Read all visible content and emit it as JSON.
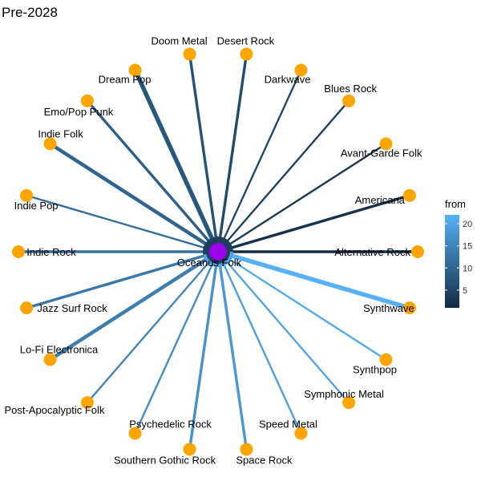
{
  "title": "Pre-2028",
  "center": {
    "label": "Oceanus Folk",
    "color": "#9b00e8"
  },
  "node_color": "#ffa500",
  "legend": {
    "title": "from",
    "ticks": [
      5,
      10,
      15,
      20
    ],
    "min": 1,
    "max": 22,
    "color_low": "#132b43",
    "color_high": "#56b1f7"
  },
  "chart_data": {
    "type": "network",
    "center": "Oceanus Folk",
    "edges": [
      {
        "to": "Alternative Rock",
        "from": 1,
        "weight": 2
      },
      {
        "to": "Americana",
        "from": 2,
        "weight": 2
      },
      {
        "to": "Avant-Garde Folk",
        "from": 3,
        "weight": 1
      },
      {
        "to": "Blues Rock",
        "from": 4,
        "weight": 1
      },
      {
        "to": "Darkwave",
        "from": 5,
        "weight": 1
      },
      {
        "to": "Desert Rock",
        "from": 6,
        "weight": 2
      },
      {
        "to": "Doom Metal",
        "from": 7,
        "weight": 2
      },
      {
        "to": "Dream Pop",
        "from": 8,
        "weight": 4
      },
      {
        "to": "Emo/Pop Punk",
        "from": 9,
        "weight": 2
      },
      {
        "to": "Indie Folk",
        "from": 10,
        "weight": 3
      },
      {
        "to": "Indie Pop",
        "from": 11,
        "weight": 1
      },
      {
        "to": "Indie Rock",
        "from": 12,
        "weight": 2
      },
      {
        "to": "Jazz Surf Rock",
        "from": 13,
        "weight": 2
      },
      {
        "to": "Lo-Fi Electronica",
        "from": 14,
        "weight": 3
      },
      {
        "to": "Post-Apocalyptic Folk",
        "from": 15,
        "weight": 1
      },
      {
        "to": "Psychedelic Rock",
        "from": 16,
        "weight": 1
      },
      {
        "to": "Southern Gothic Rock",
        "from": 17,
        "weight": 2
      },
      {
        "to": "Space Rock",
        "from": 18,
        "weight": 2
      },
      {
        "to": "Speed Metal",
        "from": 19,
        "weight": 1
      },
      {
        "to": "Symphonic Metal",
        "from": 20,
        "weight": 1
      },
      {
        "to": "Synthpop",
        "from": 21,
        "weight": 1
      },
      {
        "to": "Synthwave",
        "from": 22,
        "weight": 4
      }
    ]
  }
}
